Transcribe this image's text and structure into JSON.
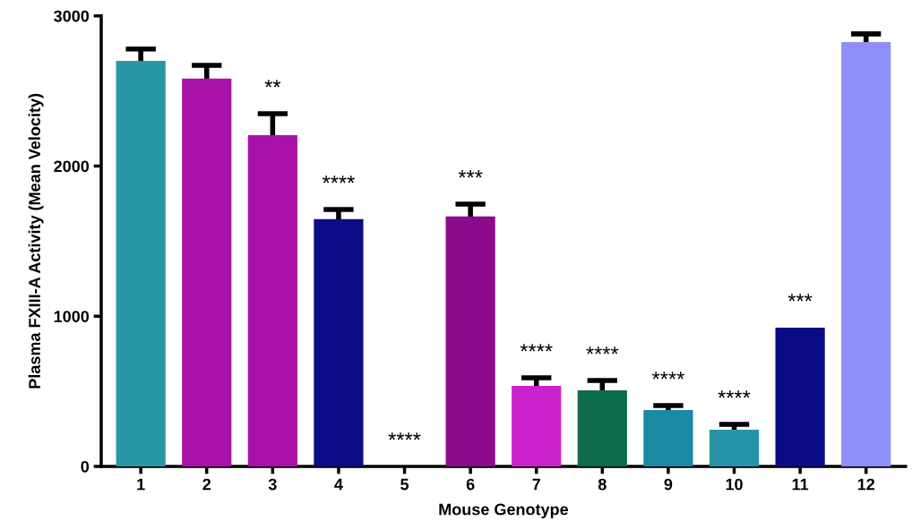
{
  "chart_data": {
    "type": "bar",
    "xlabel": "Mouse Genotype",
    "ylabel": "Plasma FXIII-A Activity (Mean Velocity)",
    "categories": [
      "1",
      "2",
      "3",
      "4",
      "5",
      "6",
      "7",
      "8",
      "9",
      "10",
      "11",
      "12"
    ],
    "values": [
      2701,
      2582,
      2206,
      1646,
      0,
      1664,
      537,
      507,
      376,
      244,
      924,
      2826
    ],
    "errors": [
      78,
      89,
      143,
      65,
      null,
      83,
      53,
      65,
      29,
      36,
      null,
      54
    ],
    "colors": [
      "#2a97a6",
      "#a812a8",
      "#a812a8",
      "#0c0c88",
      "#0c0c88",
      "#8c0a8c",
      "#cc22cc",
      "#0f6b4e",
      "#1a8aa2",
      "#2494a6",
      "#0a0a86",
      "#8f8ff8"
    ],
    "value_labels": [
      null,
      null,
      "**",
      "****",
      "****",
      "***",
      "****",
      "****",
      "****",
      "****",
      "***",
      null
    ],
    "ylim": [
      0,
      3000
    ],
    "yticks": [
      0,
      1000,
      2000,
      3000
    ],
    "grid": false,
    "legend": false
  }
}
